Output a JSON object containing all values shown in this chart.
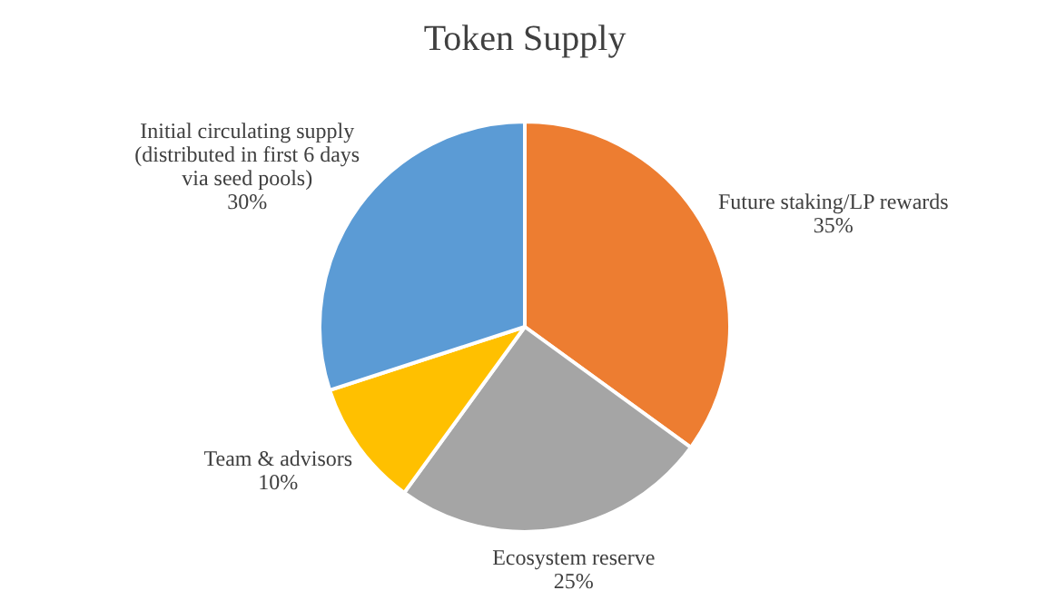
{
  "chart_data": {
    "type": "pie",
    "title": "Token Supply",
    "categories": [
      "Future staking/LP rewards",
      "Ecosystem reserve",
      "Team & advisors",
      "Initial circulating supply (distributed in first 6 days via seed pools)"
    ],
    "values": [
      35,
      25,
      10,
      30
    ],
    "colors": [
      "#ed7d31",
      "#a5a5a5",
      "#ffc000",
      "#5b9bd5"
    ],
    "value_labels": [
      "35%",
      "25%",
      "10%",
      "30%"
    ],
    "legend": false
  }
}
